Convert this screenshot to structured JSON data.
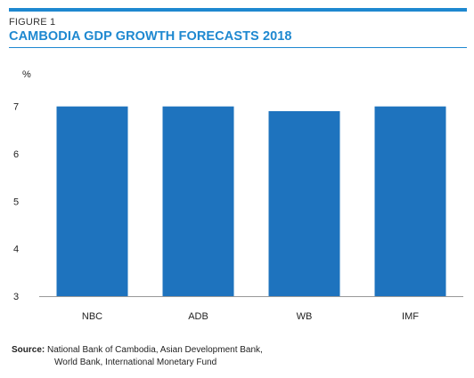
{
  "figure": {
    "label": "FIGURE 1",
    "title": "CAMBODIA GDP GROWTH FORECASTS 2018",
    "accent_color": "#1e88d0"
  },
  "chart_data": {
    "type": "bar",
    "title": "CAMBODIA GDP GROWTH FORECASTS 2018",
    "ylabel": "%",
    "xlabel": "",
    "categories": [
      "NBC",
      "ADB",
      "WB",
      "IMF"
    ],
    "values": [
      7.0,
      7.0,
      6.9,
      7.0
    ],
    "ylim": [
      3,
      7.5
    ],
    "yticks": [
      3,
      4,
      5,
      6,
      7
    ],
    "grid": false,
    "bar_color": "#1e73be"
  },
  "source": {
    "label": "Source:",
    "line1": "National Bank of Cambodia, Asian Development Bank,",
    "line2": "World Bank, International Monetary Fund"
  }
}
